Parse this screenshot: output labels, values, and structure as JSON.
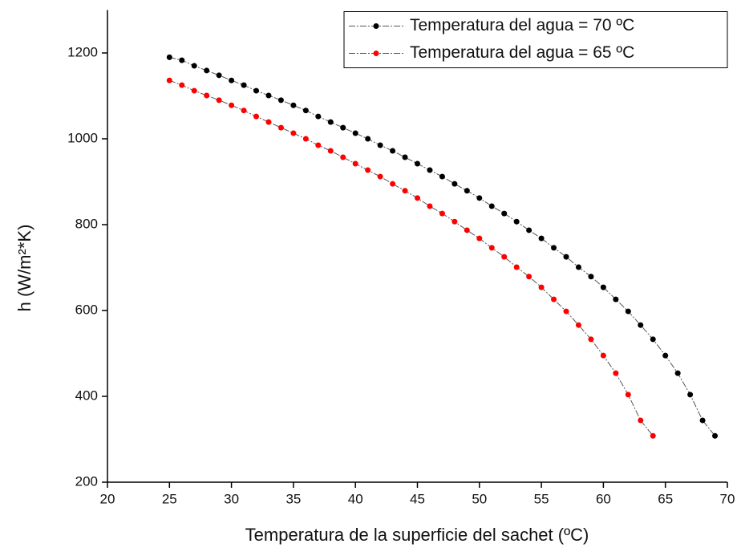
{
  "chart_data": {
    "type": "line",
    "x_label": "Temperatura de la superficie del sachet (ºC)",
    "y_label": "h (W/m²*K)",
    "xlim": [
      20,
      70
    ],
    "xticks": [
      20,
      25,
      30,
      35,
      40,
      45,
      50,
      55,
      60,
      65,
      70
    ],
    "ylim": [
      200,
      1300
    ],
    "yticks": [
      200,
      400,
      600,
      800,
      1000,
      1200
    ],
    "legend": "top-right",
    "series": [
      {
        "name": "Temperatura del agua = 70 ºC",
        "color": "#000000",
        "x": [
          25,
          26,
          27,
          28,
          29,
          30,
          31,
          32,
          33,
          34,
          35,
          36,
          37,
          38,
          39,
          40,
          41,
          42,
          43,
          44,
          45,
          46,
          47,
          48,
          49,
          50,
          51,
          52,
          53,
          54,
          55,
          56,
          57,
          58,
          59,
          60,
          61,
          62,
          63,
          64,
          65,
          66,
          67,
          68,
          69
        ],
        "values": [
          1190,
          1183,
          1170,
          1159,
          1148,
          1136,
          1125,
          1112,
          1101,
          1090,
          1078,
          1066,
          1052,
          1039,
          1026,
          1013,
          1000,
          985,
          972,
          957,
          942,
          927,
          912,
          895,
          879,
          862,
          843,
          826,
          807,
          787,
          768,
          746,
          725,
          701,
          679,
          654,
          626,
          598,
          566,
          533,
          495,
          454,
          404,
          344,
          308
        ]
      },
      {
        "name": "Temperatura del agua = 65 ºC",
        "color": "#ff0000",
        "x": [
          25,
          26,
          27,
          28,
          29,
          30,
          31,
          32,
          33,
          34,
          35,
          36,
          37,
          38,
          39,
          40,
          41,
          42,
          43,
          44,
          45,
          46,
          47,
          48,
          49,
          50,
          51,
          52,
          53,
          54,
          55,
          56,
          57,
          58,
          59,
          60,
          61,
          62,
          63,
          64
        ],
        "values": [
          1136,
          1125,
          1112,
          1101,
          1090,
          1078,
          1066,
          1052,
          1039,
          1026,
          1013,
          1000,
          985,
          972,
          957,
          942,
          927,
          912,
          895,
          879,
          862,
          843,
          826,
          807,
          787,
          768,
          746,
          725,
          701,
          679,
          654,
          626,
          598,
          566,
          533,
          495,
          454,
          404,
          344,
          308
        ]
      }
    ]
  }
}
